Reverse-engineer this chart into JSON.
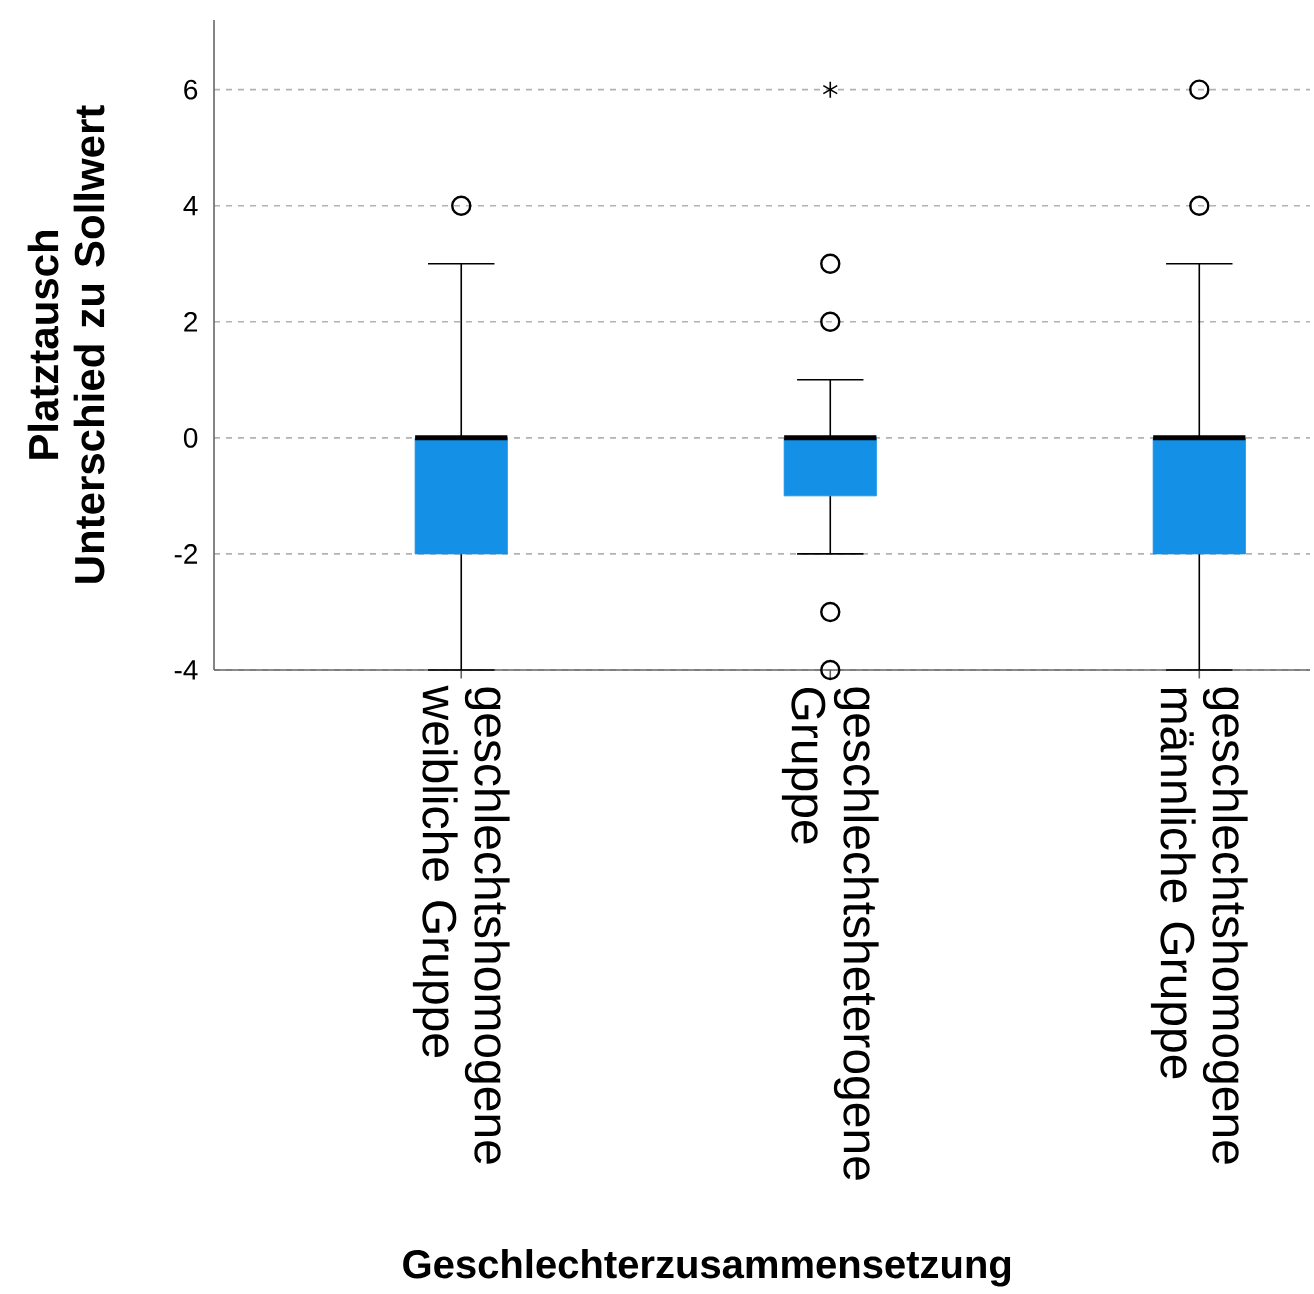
{
  "chart_data": {
    "type": "box",
    "xlabel": "Geschlechterzusammensetzung",
    "ylabel": "Platztausch Unterschied zu Sollwert",
    "categories": [
      "geschlechtshomogene weibliche Gruppe",
      "geschlechtsheterogene Gruppe",
      "geschlechtshomogene männliche Gruppe"
    ],
    "boxes": [
      {
        "low": -4,
        "q1": -2,
        "median": 0,
        "q3": 0,
        "high": 3,
        "outliers": [
          4
        ]
      },
      {
        "low": -2,
        "q1": -1,
        "median": 0,
        "q3": 0,
        "high": 1,
        "outliers": [
          6,
          3,
          2,
          -3,
          -4
        ]
      },
      {
        "low": -4,
        "q1": -2,
        "median": 0,
        "q3": 0,
        "high": 3,
        "outliers": [
          6,
          4
        ]
      }
    ],
    "color": "#1490e6",
    "ylim": [
      -4,
      7.2
    ],
    "yticks": [
      -4,
      -2,
      0,
      2,
      4,
      6
    ],
    "grid": "y"
  }
}
